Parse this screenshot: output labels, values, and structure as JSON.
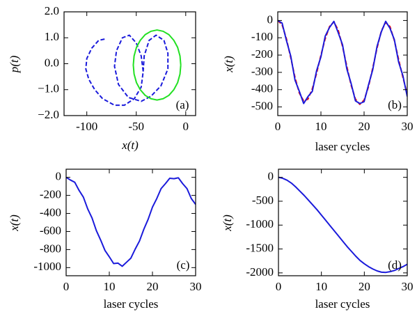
{
  "chart_data": [
    {
      "type": "line",
      "xlabel": "x(t)",
      "ylabel": "p(t)",
      "annotation": "(a)",
      "xlim": [
        -123,
        10
      ],
      "xticks": [
        -100,
        -50,
        0
      ],
      "ylim": [
        -2,
        2
      ],
      "yticks": [
        {
          "value": -2,
          "label": "−2.0"
        },
        {
          "value": -1,
          "label": "−1.0"
        },
        {
          "value": 0,
          "label": "0.0"
        },
        {
          "value": 1,
          "label": "1.0"
        },
        {
          "value": 2,
          "label": "2.0"
        }
      ],
      "series": [
        {
          "color": "#1a1adb",
          "linestyle": "dashed",
          "x": [
            -82,
            -88,
            -95,
            -100,
            -101,
            -98,
            -92,
            -84,
            -72,
            -62,
            -52,
            -45,
            -43,
            -45,
            -50,
            -57,
            -64,
            -70,
            -72,
            -68,
            -58,
            -45,
            -35,
            -25,
            -18,
            -18,
            -22,
            -30,
            -37,
            -42,
            -43
          ],
          "values": [
            0.95,
            0.9,
            0.6,
            0.2,
            -0.2,
            -0.6,
            -1.0,
            -1.35,
            -1.6,
            -1.6,
            -1.35,
            -0.9,
            -0.3,
            0.3,
            0.8,
            1.1,
            1.0,
            0.5,
            -0.1,
            -0.8,
            -1.3,
            -1.45,
            -1.25,
            -0.85,
            -0.2,
            0.4,
            0.9,
            1.1,
            0.9,
            0.3,
            -0.3
          ]
        },
        {
          "color": "#22e022",
          "linestyle": "solid",
          "x": [
            -5,
            -5.8,
            -8.2,
            -12,
            -17,
            -22.8,
            -29,
            -35.2,
            -41,
            -46,
            -49.8,
            -52.2,
            -53,
            -52.2,
            -49.8,
            -46,
            -41,
            -35.2,
            -29,
            -22.8,
            -17,
            -12,
            -8.2,
            -5.8,
            -5
          ],
          "values": [
            -0.05,
            0.3,
            0.63,
            0.9,
            1.12,
            1.25,
            1.3,
            1.25,
            1.12,
            0.9,
            0.63,
            0.3,
            -0.05,
            -0.4,
            -0.73,
            -1.0,
            -1.22,
            -1.35,
            -1.4,
            -1.35,
            -1.22,
            -1.0,
            -0.73,
            -0.4,
            -0.05
          ]
        }
      ]
    },
    {
      "type": "line",
      "xlabel": "laser cycles",
      "ylabel": "x(t)",
      "annotation": "(b)",
      "xlim": [
        0,
        30
      ],
      "xticks": [
        0,
        10,
        20,
        30
      ],
      "ylim": [
        -550,
        50
      ],
      "yticks": [
        -500,
        -400,
        -300,
        -200,
        -100,
        0
      ],
      "x": [
        0,
        1,
        2,
        3,
        4,
        5,
        6,
        7,
        8,
        9,
        10,
        11,
        12,
        13,
        14,
        15,
        16,
        17,
        18,
        19,
        20,
        21,
        22,
        23,
        24,
        25,
        26,
        27,
        28,
        29,
        30
      ],
      "series": [
        {
          "color": "#ee1111",
          "linestyle": "dashed",
          "values": [
            0,
            -25,
            -105,
            -215,
            -330,
            -420,
            -465,
            -455,
            -395,
            -305,
            -200,
            -105,
            -35,
            -8,
            -55,
            -150,
            -265,
            -375,
            -455,
            -485,
            -460,
            -385,
            -275,
            -160,
            -60,
            -12,
            -35,
            -115,
            -225,
            -330,
            -425
          ]
        },
        {
          "color": "#1a1adb",
          "linestyle": "solid",
          "values": [
            0,
            -15,
            -115,
            -205,
            -345,
            -410,
            -480,
            -440,
            -410,
            -290,
            -210,
            -90,
            -40,
            -5,
            -70,
            -140,
            -280,
            -365,
            -465,
            -480,
            -470,
            -375,
            -285,
            -150,
            -65,
            -5,
            -45,
            -110,
            -240,
            -320,
            -440
          ]
        }
      ]
    },
    {
      "type": "line",
      "xlabel": "laser cycles",
      "ylabel": "x(t)",
      "annotation": "(c)",
      "xlim": [
        0,
        30
      ],
      "xticks": [
        0,
        10,
        20,
        30
      ],
      "ylim": [
        -1090,
        90
      ],
      "yticks": [
        -1000,
        -800,
        -600,
        -400,
        -200,
        0
      ],
      "x": [
        0,
        1,
        2,
        3,
        4,
        5,
        6,
        7,
        8,
        9,
        10,
        11,
        12,
        13,
        14,
        15,
        16,
        17,
        18,
        19,
        20,
        21,
        22,
        23,
        24,
        25,
        26,
        27,
        28,
        29,
        30
      ],
      "series": [
        {
          "color": "#1a1adb",
          "linestyle": "solid",
          "values": [
            0,
            -30,
            -55,
            -145,
            -220,
            -350,
            -450,
            -590,
            -695,
            -810,
            -880,
            -955,
            -950,
            -985,
            -940,
            -895,
            -795,
            -705,
            -575,
            -465,
            -330,
            -235,
            -125,
            -70,
            -10,
            -15,
            -5,
            -70,
            -125,
            -235,
            -300
          ]
        }
      ]
    },
    {
      "type": "line",
      "xlabel": "laser cycles",
      "ylabel": "x(t)",
      "annotation": "(d)",
      "xlim": [
        0,
        30
      ],
      "xticks": [
        0,
        10,
        20,
        30
      ],
      "ylim": [
        -2060,
        170
      ],
      "yticks": [
        -2000,
        -1500,
        -1000,
        -500,
        0
      ],
      "x": [
        0,
        1,
        2,
        3,
        4,
        5,
        6,
        7,
        8,
        9,
        10,
        11,
        12,
        13,
        14,
        15,
        16,
        17,
        18,
        19,
        20,
        21,
        22,
        23,
        24,
        25,
        26,
        27,
        28,
        29,
        30
      ],
      "series": [
        {
          "color": "#1a1adb",
          "linestyle": "solid",
          "values": [
            0,
            -20,
            -60,
            -120,
            -200,
            -290,
            -380,
            -480,
            -580,
            -680,
            -790,
            -900,
            -1010,
            -1120,
            -1230,
            -1340,
            -1450,
            -1550,
            -1650,
            -1740,
            -1810,
            -1870,
            -1920,
            -1960,
            -1985,
            -1990,
            -1975,
            -1950,
            -1910,
            -1870,
            -1820
          ]
        }
      ]
    }
  ]
}
